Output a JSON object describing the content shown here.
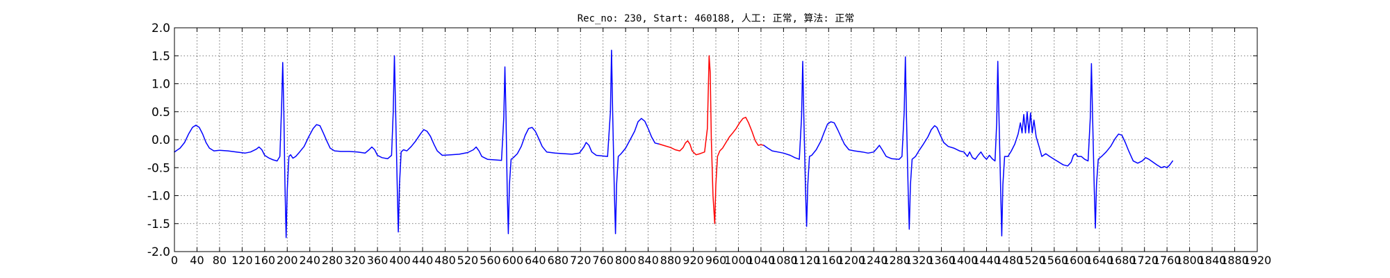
{
  "chart_data": {
    "type": "line",
    "title": "Rec_no: 230, Start: 460188, 人工: 正常, 算法: 正常",
    "xlim": [
      0,
      1920
    ],
    "ylim": [
      -2.0,
      2.0
    ],
    "grid": true,
    "ytick_labels": [
      "2.0",
      "1.5",
      "1.0",
      "0.5",
      "0.0",
      "-0.5",
      "-1.0",
      "-1.5",
      "-2.0"
    ],
    "yticks": [
      2.0,
      1.5,
      1.0,
      0.5,
      0.0,
      -0.5,
      -1.0,
      -1.5,
      -2.0
    ],
    "xticks": [
      0,
      40,
      80,
      120,
      160,
      200,
      240,
      280,
      320,
      360,
      400,
      440,
      480,
      520,
      560,
      600,
      640,
      680,
      720,
      760,
      800,
      840,
      880,
      920,
      960,
      1000,
      1040,
      1080,
      1120,
      1160,
      1200,
      1240,
      1280,
      1320,
      1360,
      1400,
      1440,
      1480,
      1520,
      1560,
      1600,
      1640,
      1680,
      1720,
      1760,
      1800,
      1840,
      1880,
      1920
    ],
    "xtick_labels": [
      "0",
      "40",
      "80",
      "120",
      "160",
      "200",
      "240",
      "280",
      "320",
      "360",
      "400",
      "440",
      "480",
      "520",
      "560",
      "600",
      "640",
      "680",
      "720",
      "760",
      "800",
      "840",
      "880",
      "920",
      "960",
      "1000",
      "1040",
      "1080",
      "1120",
      "1160",
      "1200",
      "1240",
      "1280",
      "1320",
      "1360",
      "1400",
      "1440",
      "1480",
      "1520",
      "1560",
      "1600",
      "1640",
      "1680",
      "1720",
      "1760",
      "1800",
      "1840",
      "1880",
      "1920"
    ],
    "series": [
      {
        "color": "#0000ff",
        "points": [
          [
            0,
            -0.22
          ],
          [
            10,
            -0.15
          ],
          [
            18,
            -0.05
          ],
          [
            25,
            0.1
          ],
          [
            32,
            0.22
          ],
          [
            38,
            0.26
          ],
          [
            44,
            0.22
          ],
          [
            50,
            0.1
          ],
          [
            56,
            -0.05
          ],
          [
            62,
            -0.15
          ],
          [
            70,
            -0.2
          ],
          [
            80,
            -0.19
          ],
          [
            95,
            -0.2
          ],
          [
            110,
            -0.22
          ],
          [
            125,
            -0.24
          ],
          [
            135,
            -0.22
          ],
          [
            145,
            -0.17
          ],
          [
            150,
            -0.13
          ],
          [
            155,
            -0.18
          ],
          [
            160,
            -0.28
          ],
          [
            168,
            -0.33
          ],
          [
            175,
            -0.36
          ],
          [
            182,
            -0.38
          ],
          [
            187,
            -0.3
          ],
          [
            190,
            0.6
          ],
          [
            192,
            1.38
          ],
          [
            194,
            0.5
          ],
          [
            196,
            -0.8
          ],
          [
            198,
            -1.75
          ],
          [
            200,
            -0.9
          ],
          [
            203,
            -0.3
          ],
          [
            206,
            -0.27
          ],
          [
            210,
            -0.33
          ],
          [
            215,
            -0.3
          ],
          [
            222,
            -0.22
          ],
          [
            230,
            -0.12
          ],
          [
            238,
            0.05
          ],
          [
            246,
            0.2
          ],
          [
            252,
            0.27
          ],
          [
            258,
            0.25
          ],
          [
            264,
            0.12
          ],
          [
            270,
            -0.02
          ],
          [
            276,
            -0.15
          ],
          [
            284,
            -0.2
          ],
          [
            295,
            -0.21
          ],
          [
            310,
            -0.21
          ],
          [
            325,
            -0.22
          ],
          [
            338,
            -0.24
          ],
          [
            345,
            -0.18
          ],
          [
            350,
            -0.13
          ],
          [
            355,
            -0.18
          ],
          [
            360,
            -0.28
          ],
          [
            368,
            -0.32
          ],
          [
            378,
            -0.34
          ],
          [
            385,
            -0.28
          ],
          [
            388,
            0.5
          ],
          [
            390,
            1.5
          ],
          [
            392,
            0.6
          ],
          [
            395,
            -0.8
          ],
          [
            397,
            -1.65
          ],
          [
            399,
            -0.8
          ],
          [
            402,
            -0.22
          ],
          [
            406,
            -0.18
          ],
          [
            412,
            -0.2
          ],
          [
            420,
            -0.12
          ],
          [
            428,
            -0.02
          ],
          [
            436,
            0.1
          ],
          [
            442,
            0.18
          ],
          [
            448,
            0.15
          ],
          [
            454,
            0.06
          ],
          [
            460,
            -0.08
          ],
          [
            466,
            -0.2
          ],
          [
            475,
            -0.28
          ],
          [
            490,
            -0.27
          ],
          [
            505,
            -0.26
          ],
          [
            520,
            -0.23
          ],
          [
            530,
            -0.18
          ],
          [
            535,
            -0.13
          ],
          [
            540,
            -0.2
          ],
          [
            545,
            -0.3
          ],
          [
            555,
            -0.35
          ],
          [
            580,
            -0.37
          ],
          [
            584,
            0.4
          ],
          [
            586,
            1.3
          ],
          [
            588,
            0.4
          ],
          [
            590,
            -0.9
          ],
          [
            592,
            -1.68
          ],
          [
            594,
            -0.8
          ],
          [
            597,
            -0.35
          ],
          [
            601,
            -0.32
          ],
          [
            608,
            -0.25
          ],
          [
            615,
            -0.12
          ],
          [
            622,
            0.08
          ],
          [
            628,
            0.2
          ],
          [
            634,
            0.22
          ],
          [
            640,
            0.15
          ],
          [
            646,
            0.02
          ],
          [
            652,
            -0.12
          ],
          [
            660,
            -0.22
          ],
          [
            675,
            -0.24
          ],
          [
            690,
            -0.25
          ],
          [
            705,
            -0.26
          ],
          [
            718,
            -0.24
          ],
          [
            726,
            -0.13
          ],
          [
            730,
            -0.05
          ],
          [
            735,
            -0.1
          ],
          [
            740,
            -0.22
          ],
          [
            748,
            -0.28
          ],
          [
            768,
            -0.3
          ],
          [
            773,
            0.5
          ],
          [
            775,
            1.6
          ],
          [
            777,
            0.5
          ],
          [
            780,
            -0.9
          ],
          [
            782,
            -1.68
          ],
          [
            784,
            -0.8
          ],
          [
            787,
            -0.3
          ],
          [
            792,
            -0.25
          ],
          [
            800,
            -0.15
          ],
          [
            808,
            0.0
          ],
          [
            816,
            0.15
          ],
          [
            822,
            0.32
          ],
          [
            828,
            0.38
          ],
          [
            834,
            0.33
          ],
          [
            840,
            0.2
          ],
          [
            846,
            0.05
          ],
          [
            852,
            -0.06
          ],
          [
            860,
            -0.08
          ]
        ]
      },
      {
        "color": "#ff0000",
        "points": [
          [
            860,
            -0.08
          ],
          [
            870,
            -0.11
          ],
          [
            880,
            -0.14
          ],
          [
            888,
            -0.18
          ],
          [
            896,
            -0.2
          ],
          [
            902,
            -0.14
          ],
          [
            906,
            -0.06
          ],
          [
            910,
            -0.02
          ],
          [
            914,
            -0.08
          ],
          [
            918,
            -0.2
          ],
          [
            925,
            -0.27
          ],
          [
            932,
            -0.25
          ],
          [
            940,
            -0.22
          ],
          [
            945,
            0.2
          ],
          [
            948,
            1.5
          ],
          [
            950,
            1.2
          ],
          [
            952,
            0.0
          ],
          [
            955,
            -1.0
          ],
          [
            958,
            -1.5
          ],
          [
            960,
            -0.8
          ],
          [
            963,
            -0.3
          ],
          [
            967,
            -0.2
          ],
          [
            972,
            -0.15
          ],
          [
            978,
            -0.05
          ],
          [
            984,
            0.05
          ],
          [
            990,
            0.12
          ],
          [
            996,
            0.2
          ],
          [
            1002,
            0.3
          ],
          [
            1008,
            0.38
          ],
          [
            1013,
            0.4
          ],
          [
            1018,
            0.3
          ],
          [
            1024,
            0.15
          ],
          [
            1030,
            -0.02
          ],
          [
            1035,
            -0.1
          ],
          [
            1040,
            -0.09
          ],
          [
            1045,
            -0.1
          ]
        ]
      },
      {
        "color": "#0000ff",
        "points": [
          [
            1045,
            -0.1
          ],
          [
            1052,
            -0.15
          ],
          [
            1060,
            -0.2
          ],
          [
            1070,
            -0.22
          ],
          [
            1080,
            -0.24
          ],
          [
            1092,
            -0.28
          ],
          [
            1100,
            -0.32
          ],
          [
            1108,
            -0.35
          ],
          [
            1112,
            0.4
          ],
          [
            1114,
            1.4
          ],
          [
            1116,
            0.4
          ],
          [
            1119,
            -0.9
          ],
          [
            1121,
            -1.55
          ],
          [
            1123,
            -0.8
          ],
          [
            1126,
            -0.3
          ],
          [
            1130,
            -0.28
          ],
          [
            1138,
            -0.18
          ],
          [
            1146,
            -0.03
          ],
          [
            1152,
            0.13
          ],
          [
            1158,
            0.28
          ],
          [
            1164,
            0.32
          ],
          [
            1170,
            0.3
          ],
          [
            1176,
            0.18
          ],
          [
            1182,
            0.05
          ],
          [
            1188,
            -0.08
          ],
          [
            1196,
            -0.18
          ],
          [
            1206,
            -0.2
          ],
          [
            1220,
            -0.22
          ],
          [
            1230,
            -0.24
          ],
          [
            1240,
            -0.22
          ],
          [
            1246,
            -0.15
          ],
          [
            1250,
            -0.1
          ],
          [
            1255,
            -0.18
          ],
          [
            1262,
            -0.3
          ],
          [
            1272,
            -0.34
          ],
          [
            1285,
            -0.35
          ],
          [
            1290,
            -0.3
          ],
          [
            1294,
            0.5
          ],
          [
            1296,
            1.48
          ],
          [
            1298,
            0.4
          ],
          [
            1301,
            -0.9
          ],
          [
            1303,
            -1.6
          ],
          [
            1305,
            -0.8
          ],
          [
            1308,
            -0.35
          ],
          [
            1314,
            -0.3
          ],
          [
            1320,
            -0.2
          ],
          [
            1328,
            -0.08
          ],
          [
            1336,
            0.05
          ],
          [
            1342,
            0.18
          ],
          [
            1348,
            0.25
          ],
          [
            1352,
            0.22
          ],
          [
            1358,
            0.08
          ],
          [
            1364,
            -0.05
          ],
          [
            1372,
            -0.12
          ],
          [
            1382,
            -0.15
          ],
          [
            1392,
            -0.2
          ],
          [
            1400,
            -0.22
          ],
          [
            1406,
            -0.3
          ],
          [
            1410,
            -0.22
          ],
          [
            1415,
            -0.32
          ],
          [
            1420,
            -0.35
          ],
          [
            1425,
            -0.28
          ],
          [
            1430,
            -0.22
          ],
          [
            1435,
            -0.3
          ],
          [
            1440,
            -0.35
          ],
          [
            1445,
            -0.28
          ],
          [
            1450,
            -0.34
          ],
          [
            1455,
            -0.38
          ],
          [
            1458,
            0.3
          ],
          [
            1460,
            1.4
          ],
          [
            1462,
            0.4
          ],
          [
            1465,
            -0.9
          ],
          [
            1467,
            -1.72
          ],
          [
            1469,
            -0.8
          ],
          [
            1472,
            -0.3
          ],
          [
            1478,
            -0.3
          ],
          [
            1484,
            -0.2
          ],
          [
            1490,
            -0.08
          ],
          [
            1496,
            0.1
          ],
          [
            1500,
            0.3
          ],
          [
            1503,
            0.12
          ],
          [
            1506,
            0.45
          ],
          [
            1509,
            0.12
          ],
          [
            1512,
            0.5
          ],
          [
            1515,
            0.12
          ],
          [
            1518,
            0.48
          ],
          [
            1521,
            0.12
          ],
          [
            1524,
            0.35
          ],
          [
            1528,
            0.05
          ],
          [
            1533,
            -0.12
          ],
          [
            1538,
            -0.3
          ],
          [
            1545,
            -0.25
          ],
          [
            1552,
            -0.3
          ],
          [
            1560,
            -0.35
          ],
          [
            1568,
            -0.4
          ],
          [
            1576,
            -0.45
          ],
          [
            1584,
            -0.47
          ],
          [
            1590,
            -0.4
          ],
          [
            1594,
            -0.28
          ],
          [
            1598,
            -0.25
          ],
          [
            1602,
            -0.3
          ],
          [
            1608,
            -0.3
          ],
          [
            1614,
            -0.35
          ],
          [
            1620,
            -0.38
          ],
          [
            1624,
            0.4
          ],
          [
            1626,
            1.36
          ],
          [
            1628,
            0.4
          ],
          [
            1631,
            -0.9
          ],
          [
            1633,
            -1.58
          ],
          [
            1635,
            -0.8
          ],
          [
            1638,
            -0.35
          ],
          [
            1644,
            -0.3
          ],
          [
            1652,
            -0.22
          ],
          [
            1660,
            -0.12
          ],
          [
            1668,
            0.02
          ],
          [
            1674,
            0.1
          ],
          [
            1680,
            0.08
          ],
          [
            1686,
            -0.05
          ],
          [
            1692,
            -0.2
          ],
          [
            1700,
            -0.38
          ],
          [
            1708,
            -0.42
          ],
          [
            1716,
            -0.38
          ],
          [
            1722,
            -0.32
          ],
          [
            1728,
            -0.35
          ],
          [
            1735,
            -0.4
          ],
          [
            1742,
            -0.45
          ],
          [
            1750,
            -0.5
          ],
          [
            1755,
            -0.48
          ],
          [
            1760,
            -0.5
          ],
          [
            1765,
            -0.45
          ],
          [
            1770,
            -0.38
          ]
        ]
      }
    ]
  }
}
